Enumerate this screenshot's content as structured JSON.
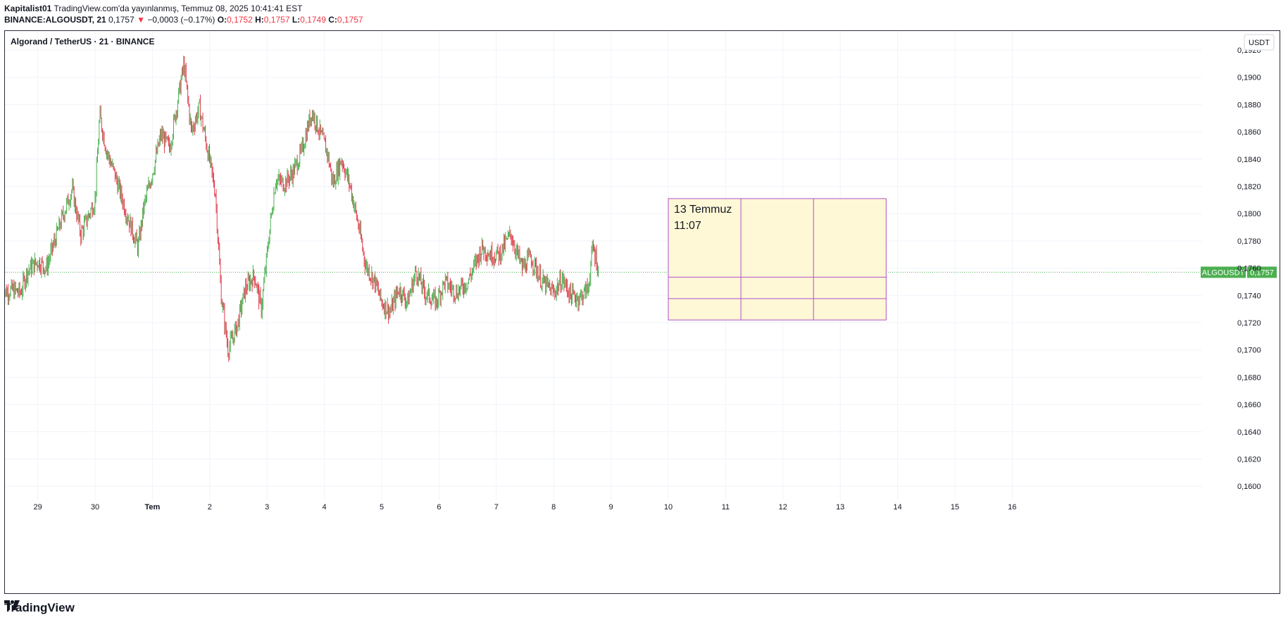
{
  "header": {
    "author": "Kapitalist01",
    "published": "TradingView.com'da yayınlanmış, Temmuz 08, 2025 10:41:41 EST",
    "symbol_line": "BINANCE:ALGOUSDT, 21",
    "last": "0,1757",
    "change_arrow": "▼",
    "change": "−0,0003 (−0.17%)",
    "o_label": "O:",
    "o_value": "0,1752",
    "h_label": "H:",
    "h_value": "0,1757",
    "l_label": "L:",
    "l_value": "0,1749",
    "c_label": "C:",
    "c_value": "0,1757"
  },
  "chart_title": "Algorand / TetherUS · 21 · BINANCE",
  "currency": "USDT",
  "price_tag": {
    "symbol": "ALGOUSDT",
    "value": "0,1757",
    "price": 0.1757
  },
  "annotation": {
    "line1": "13 Temmuz",
    "line2": "11:07",
    "x_start": 10.0,
    "x_end": 13.8,
    "y_top": 0.1811,
    "y_bottom": 0.1722
  },
  "footer": {
    "brand": "TradingView"
  },
  "colors": {
    "up": "#089981",
    "down": "#f23645",
    "candle_up": "#4caf50",
    "candle_down": "#e03b4b",
    "price_line": "#4caf50",
    "box_fill": "#fff8d6",
    "box_stroke": "#b14fc9"
  },
  "chart_data": {
    "type": "candlestick",
    "title": "Algorand / TetherUS · 21 · BINANCE",
    "x_ticks": [
      {
        "label": "29",
        "day": -1
      },
      {
        "label": "30",
        "day": 0
      },
      {
        "label": "Tem",
        "day": 1
      },
      {
        "label": "2",
        "day": 2
      },
      {
        "label": "3",
        "day": 3
      },
      {
        "label": "4",
        "day": 4
      },
      {
        "label": "5",
        "day": 5
      },
      {
        "label": "6",
        "day": 6
      },
      {
        "label": "7",
        "day": 7
      },
      {
        "label": "8",
        "day": 8
      },
      {
        "label": "9",
        "day": 9
      },
      {
        "label": "10",
        "day": 10
      },
      {
        "label": "11",
        "day": 11
      },
      {
        "label": "12",
        "day": 12
      },
      {
        "label": "13",
        "day": 13
      },
      {
        "label": "14",
        "day": 14
      },
      {
        "label": "15",
        "day": 15
      },
      {
        "label": "16",
        "day": 16
      }
    ],
    "y_ticks": [
      "0,1920",
      "0,1900",
      "0,1880",
      "0,1860",
      "0,1840",
      "0,1820",
      "0,1800",
      "0,1780",
      "0,1760",
      "0,1740",
      "0,1720",
      "0,1700",
      "0,1680",
      "0,1660",
      "0,1640",
      "0,1620",
      "0,1600"
    ],
    "ylim": [
      0.16,
      0.192
    ],
    "series_path": [
      {
        "day": -1.62,
        "price": 0.1742
      },
      {
        "day": -1.45,
        "price": 0.1744
      },
      {
        "day": -1.3,
        "price": 0.1742
      },
      {
        "day": -1.18,
        "price": 0.1758
      },
      {
        "day": -1.0,
        "price": 0.1765
      },
      {
        "day": -0.85,
        "price": 0.176
      },
      {
        "day": -0.72,
        "price": 0.1778
      },
      {
        "day": -0.55,
        "price": 0.18
      },
      {
        "day": -0.4,
        "price": 0.1818
      },
      {
        "day": -0.25,
        "price": 0.1785
      },
      {
        "day": -0.1,
        "price": 0.18
      },
      {
        "day": 0.0,
        "price": 0.181
      },
      {
        "day": 0.08,
        "price": 0.1872
      },
      {
        "day": 0.2,
        "price": 0.1846
      },
      {
        "day": 0.35,
        "price": 0.1828
      },
      {
        "day": 0.55,
        "price": 0.18
      },
      {
        "day": 0.75,
        "price": 0.1775
      },
      {
        "day": 0.85,
        "price": 0.1805
      },
      {
        "day": 1.0,
        "price": 0.183
      },
      {
        "day": 1.15,
        "price": 0.1858
      },
      {
        "day": 1.3,
        "price": 0.1848
      },
      {
        "day": 1.45,
        "price": 0.1885
      },
      {
        "day": 1.55,
        "price": 0.191
      },
      {
        "day": 1.68,
        "price": 0.186
      },
      {
        "day": 1.82,
        "price": 0.1878
      },
      {
        "day": 2.0,
        "price": 0.1838
      },
      {
        "day": 2.1,
        "price": 0.1815
      },
      {
        "day": 2.2,
        "price": 0.174
      },
      {
        "day": 2.32,
        "price": 0.17
      },
      {
        "day": 2.48,
        "price": 0.1718
      },
      {
        "day": 2.62,
        "price": 0.1745
      },
      {
        "day": 2.78,
        "price": 0.1755
      },
      {
        "day": 2.9,
        "price": 0.173
      },
      {
        "day": 3.05,
        "price": 0.179
      },
      {
        "day": 3.15,
        "price": 0.1825
      },
      {
        "day": 3.3,
        "price": 0.1822
      },
      {
        "day": 3.45,
        "price": 0.183
      },
      {
        "day": 3.6,
        "price": 0.1845
      },
      {
        "day": 3.78,
        "price": 0.1875
      },
      {
        "day": 3.9,
        "price": 0.1862
      },
      {
        "day": 4.05,
        "price": 0.1845
      },
      {
        "day": 4.15,
        "price": 0.1822
      },
      {
        "day": 4.3,
        "price": 0.184
      },
      {
        "day": 4.45,
        "price": 0.182
      },
      {
        "day": 4.6,
        "price": 0.179
      },
      {
        "day": 4.72,
        "price": 0.1762
      },
      {
        "day": 4.88,
        "price": 0.175
      },
      {
        "day": 5.0,
        "price": 0.1735
      },
      {
        "day": 5.15,
        "price": 0.1728
      },
      {
        "day": 5.3,
        "price": 0.1745
      },
      {
        "day": 5.45,
        "price": 0.1735
      },
      {
        "day": 5.6,
        "price": 0.1758
      },
      {
        "day": 5.75,
        "price": 0.1742
      },
      {
        "day": 5.95,
        "price": 0.1735
      },
      {
        "day": 6.1,
        "price": 0.175
      },
      {
        "day": 6.3,
        "price": 0.1742
      },
      {
        "day": 6.5,
        "price": 0.175
      },
      {
        "day": 6.75,
        "price": 0.1775
      },
      {
        "day": 6.9,
        "price": 0.177
      },
      {
        "day": 7.05,
        "price": 0.177
      },
      {
        "day": 7.25,
        "price": 0.1785
      },
      {
        "day": 7.45,
        "price": 0.176
      },
      {
        "day": 7.6,
        "price": 0.1768
      },
      {
        "day": 7.8,
        "price": 0.175
      },
      {
        "day": 8.0,
        "price": 0.1742
      },
      {
        "day": 8.15,
        "price": 0.1752
      },
      {
        "day": 8.3,
        "price": 0.174
      },
      {
        "day": 8.45,
        "price": 0.1738
      },
      {
        "day": 8.6,
        "price": 0.1745
      },
      {
        "day": 8.68,
        "price": 0.1775
      },
      {
        "day": 8.74,
        "price": 0.1768
      },
      {
        "day": 8.78,
        "price": 0.1757
      }
    ]
  }
}
